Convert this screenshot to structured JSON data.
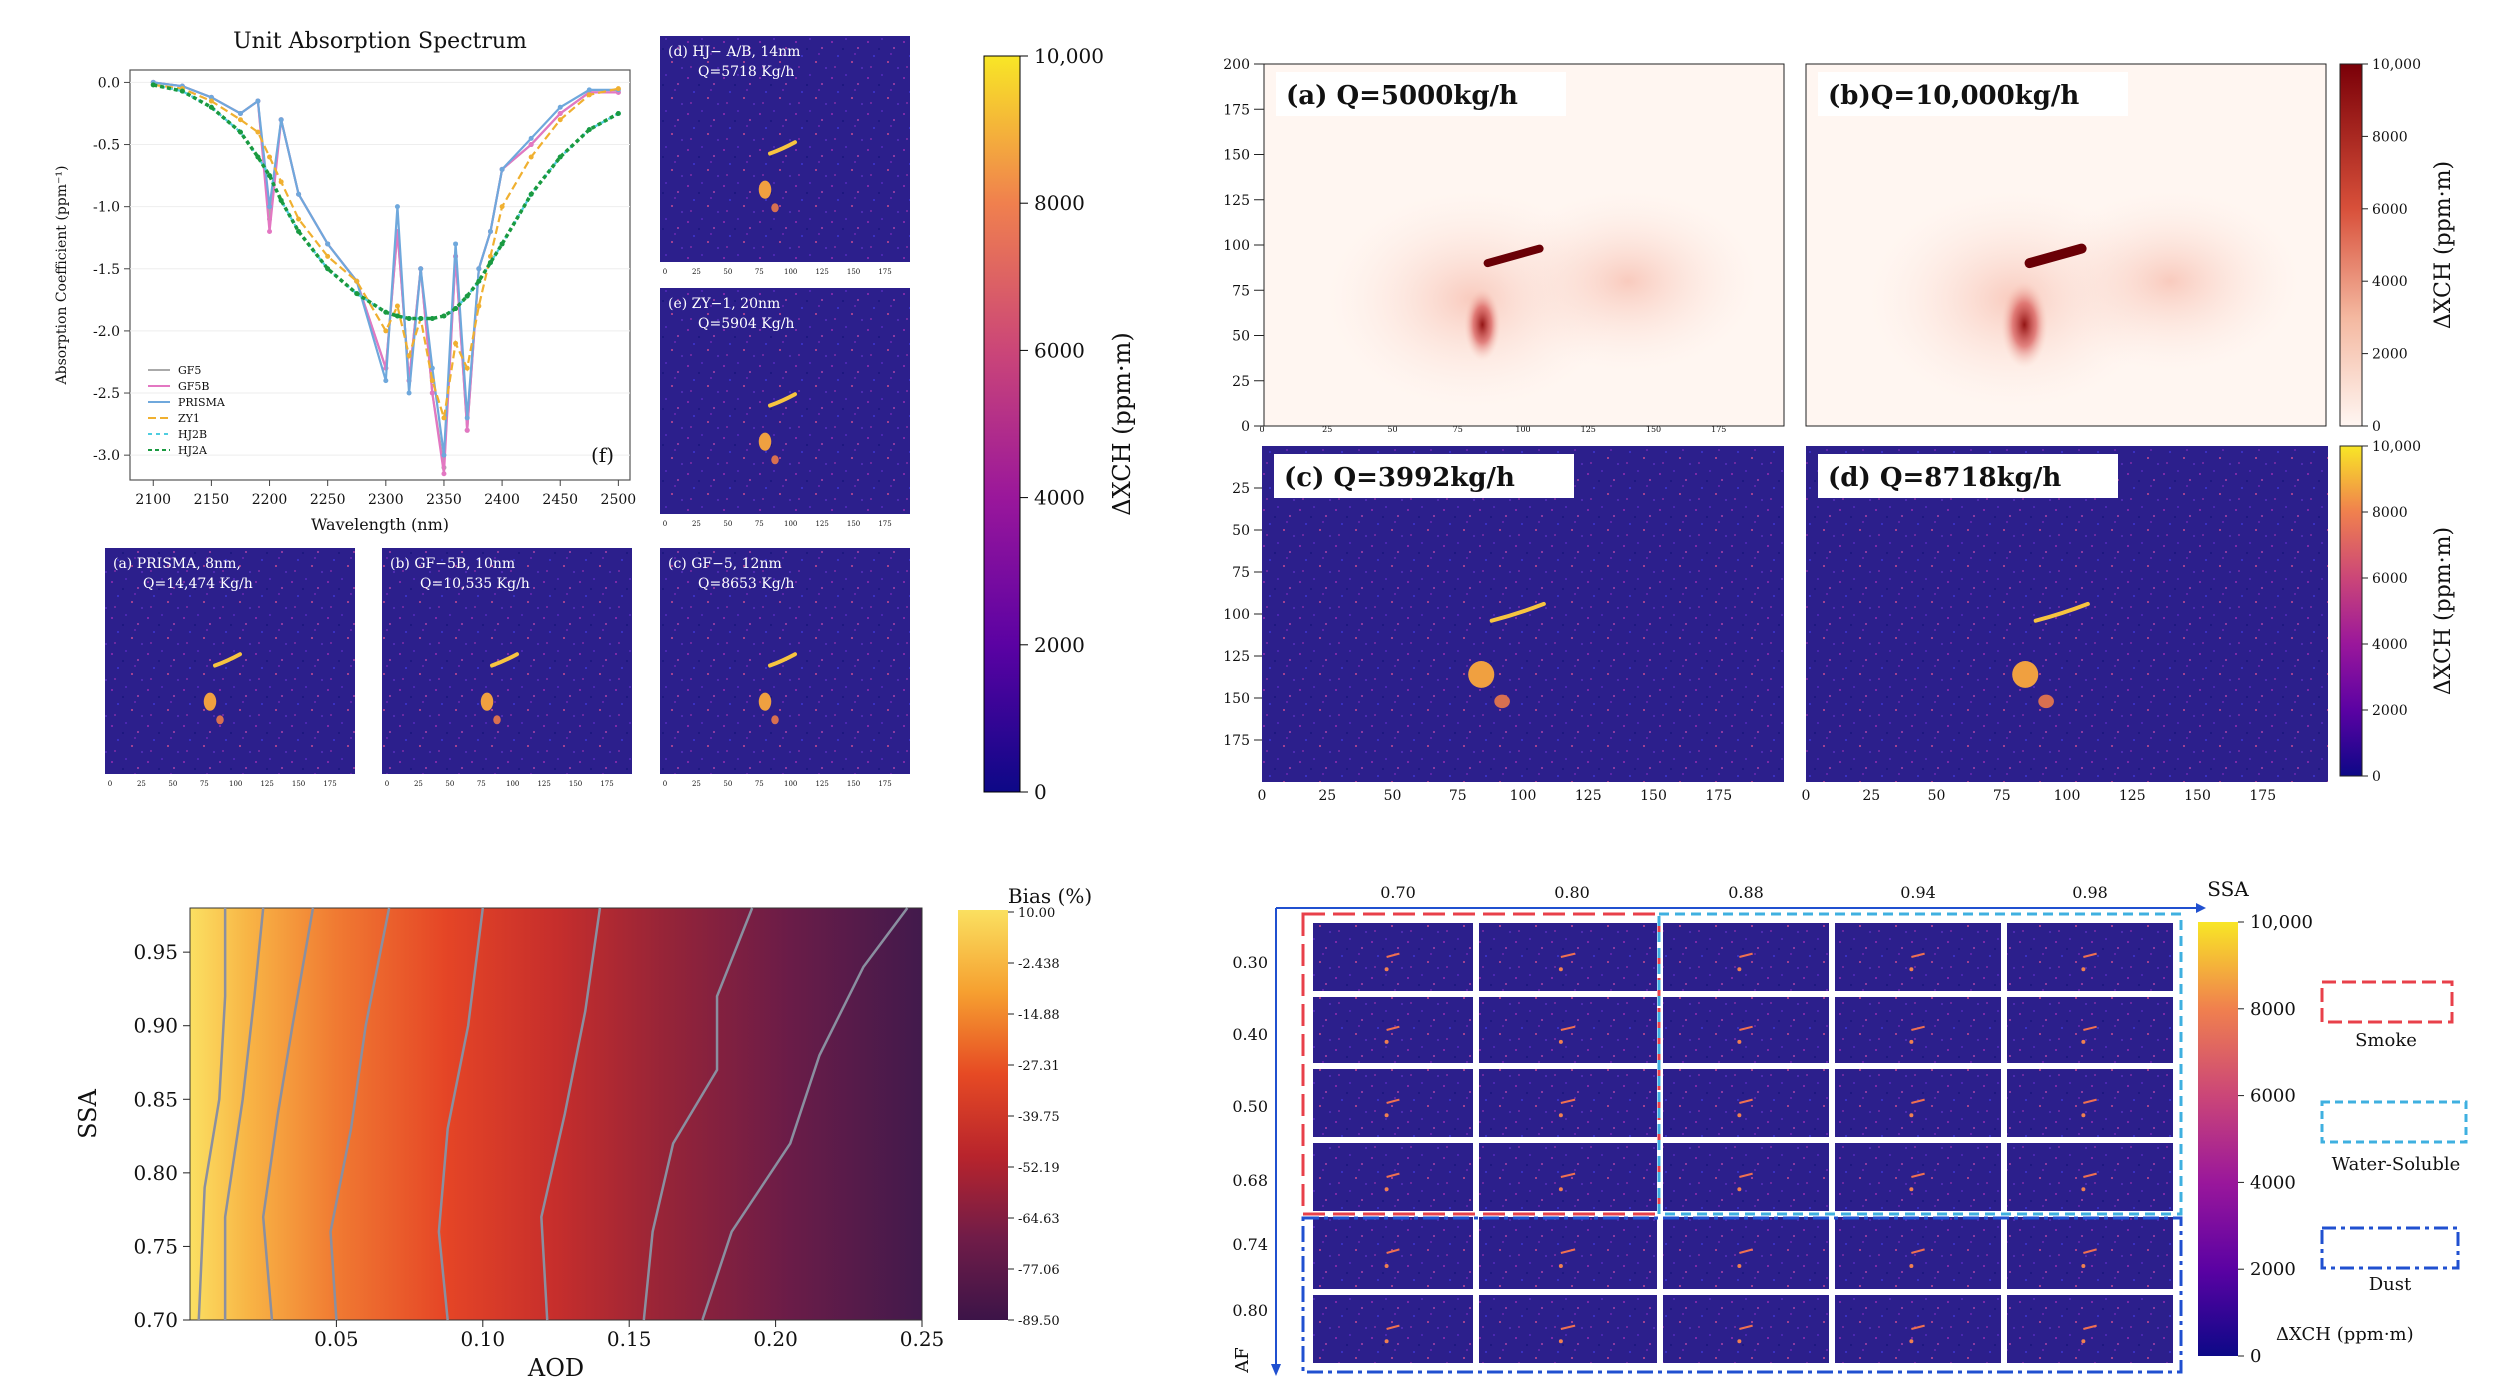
{
  "panel_top_left": {
    "spectrum": {
      "title": "Unit Absorption Spectrum",
      "ylabel": "Absorption Coefficient (ppm⁻¹)",
      "xlabel": "Wavelength (nm)",
      "tag": "(f)",
      "xticks": [
        "2100",
        "2150",
        "2200",
        "2250",
        "2300",
        "2350",
        "2400",
        "2450",
        "2500"
      ],
      "yticks": [
        "0.0",
        "-0.5",
        "-1.0",
        "-1.5",
        "-2.0",
        "-2.5",
        "-3.0"
      ]
    },
    "thumbs": [
      {
        "l1": "(d) HJ− A/B, 14nm",
        "l2": "Q=5718 Kg/h"
      },
      {
        "l1": "(e) ZY−1, 20nm",
        "l2": "Q=5904 Kg/h"
      },
      {
        "l1": "(a)  PRISMA, 8nm,",
        "l2": "Q=14,474 Kg/h"
      },
      {
        "l1": "(b) GF−5B, 10nm",
        "l2": "Q=10,535 Kg/h"
      },
      {
        "l1": "(c) GF−5, 12nm",
        "l2": "Q=8653 Kg/h"
      }
    ],
    "thumb_ticks": [
      "0",
      "25",
      "50",
      "75",
      "100",
      "125",
      "150",
      "175"
    ],
    "colorbar": {
      "ticks": [
        "10,000",
        "8000",
        "6000",
        "4000",
        "2000",
        "0"
      ],
      "label": "ΔXCH (ppm·m)"
    }
  },
  "panel_top_right": {
    "titles": [
      "(a) Q=5000kg/h",
      "(b)Q=10,000kg/h",
      "(c) Q=3992kg/h",
      "(d) Q=8718kg/h"
    ],
    "yticks_top": [
      "200",
      "175",
      "150",
      "125",
      "100",
      "75",
      "50",
      "25",
      "0"
    ],
    "yticks_bottom": [
      "25",
      "50",
      "75",
      "100",
      "125",
      "150",
      "175"
    ],
    "xticks": [
      "0",
      "25",
      "50",
      "75",
      "100",
      "125",
      "150",
      "175"
    ],
    "cbar_ticks": [
      "10,000",
      "8000",
      "6000",
      "4000",
      "2000",
      "0"
    ],
    "cbar_label": "ΔXCH (ppm·m)"
  },
  "panel_bottom_left": {
    "xlabel": "AOD",
    "ylabel": "SSA",
    "xticks": [
      "0.05",
      "0.10",
      "0.15",
      "0.20",
      "0.25"
    ],
    "yticks": [
      "0.95",
      "0.90",
      "0.85",
      "0.80",
      "0.75",
      "0.70"
    ],
    "cbar_title": "Bias (%)",
    "cbar_ticks": [
      "10.00",
      "-2.438",
      "-14.88",
      "-27.31",
      "-39.75",
      "-52.19",
      "-64.63",
      "-77.06",
      "-89.50"
    ]
  },
  "panel_bottom_right": {
    "top_axis_label": "SSA",
    "top_ticks": [
      "0.70",
      "0.80",
      "0.88",
      "0.94",
      "0.98"
    ],
    "left_axis_label": "AF",
    "left_ticks": [
      "0.30",
      "0.40",
      "0.50",
      "0.68",
      "0.74",
      "0.80"
    ],
    "cbar_ticks": [
      "10,000",
      "8000",
      "6000",
      "4000",
      "2000",
      "0"
    ],
    "cbar_label": "ΔXCH (ppm·m)",
    "legend": [
      "Smoke",
      "Water-Soluble",
      "Dust"
    ]
  },
  "colors": {
    "gf5": "#aaaaaa",
    "gf5b": "#e377c2",
    "prisma": "#6fa8dc",
    "zy1": "#f0b030",
    "hj2b": "#4ecde0",
    "hj2a": "#1a9a40",
    "plume_bg": "#2c1f8c",
    "smoke": "#e8404a",
    "water": "#3fb0e0",
    "dust": "#2050d0"
  },
  "chart_data": [
    {
      "type": "line",
      "title": "Unit Absorption Spectrum",
      "xlabel": "Wavelength (nm)",
      "ylabel": "Absorption Coefficient (ppm⁻¹)",
      "xlim": [
        2080,
        2510
      ],
      "ylim": [
        -3.2,
        0.1
      ],
      "x": [
        2100,
        2125,
        2150,
        2175,
        2190,
        2200,
        2210,
        2225,
        2250,
        2275,
        2300,
        2310,
        2320,
        2330,
        2340,
        2350,
        2360,
        2370,
        2380,
        2390,
        2400,
        2425,
        2450,
        2475,
        2500
      ],
      "series": [
        {
          "name": "GF5",
          "values": [
            0.0,
            -0.03,
            -0.12,
            -0.25,
            -0.15,
            -1.1,
            -0.3,
            -0.9,
            -1.3,
            -1.6,
            -2.3,
            -1.2,
            -2.4,
            -1.5,
            -2.5,
            -3.1,
            -1.4,
            -2.8,
            -1.5,
            -1.2,
            -0.7,
            -0.5,
            -0.25,
            -0.08,
            -0.08
          ]
        },
        {
          "name": "GF5B",
          "values": [
            0.0,
            -0.03,
            -0.12,
            -0.25,
            -0.15,
            -1.2,
            -0.3,
            -0.9,
            -1.3,
            -1.6,
            -2.3,
            -1.2,
            -2.4,
            -1.5,
            -2.5,
            -3.15,
            -1.4,
            -2.8,
            -1.5,
            -1.2,
            -0.7,
            -0.5,
            -0.25,
            -0.08,
            -0.08
          ]
        },
        {
          "name": "PRISMA",
          "values": [
            0.0,
            -0.03,
            -0.12,
            -0.25,
            -0.15,
            -1.0,
            -0.3,
            -0.9,
            -1.3,
            -1.6,
            -2.4,
            -1.0,
            -2.5,
            -1.5,
            -2.3,
            -3.0,
            -1.3,
            -2.7,
            -1.5,
            -1.2,
            -0.7,
            -0.45,
            -0.2,
            -0.06,
            -0.06
          ]
        },
        {
          "name": "ZY1",
          "values": [
            -0.02,
            -0.05,
            -0.15,
            -0.3,
            -0.4,
            -0.6,
            -0.8,
            -1.1,
            -1.4,
            -1.6,
            -2.0,
            -1.8,
            -2.2,
            -1.9,
            -2.4,
            -2.7,
            -2.1,
            -2.3,
            -1.8,
            -1.4,
            -1.0,
            -0.6,
            -0.3,
            -0.1,
            -0.05
          ]
        },
        {
          "name": "HJ2B",
          "values": [
            -0.02,
            -0.07,
            -0.2,
            -0.4,
            -0.6,
            -0.75,
            -0.95,
            -1.2,
            -1.5,
            -1.7,
            -1.85,
            -1.88,
            -1.9,
            -1.9,
            -1.9,
            -1.88,
            -1.82,
            -1.72,
            -1.6,
            -1.45,
            -1.3,
            -0.9,
            -0.6,
            -0.38,
            -0.25
          ]
        },
        {
          "name": "HJ2A",
          "values": [
            -0.02,
            -0.07,
            -0.2,
            -0.4,
            -0.6,
            -0.75,
            -0.95,
            -1.2,
            -1.5,
            -1.7,
            -1.85,
            -1.88,
            -1.9,
            -1.9,
            -1.9,
            -1.88,
            -1.82,
            -1.72,
            -1.6,
            -1.45,
            -1.3,
            -0.9,
            -0.6,
            -0.38,
            -0.25
          ]
        }
      ]
    },
    {
      "type": "heatmap",
      "xlabel": "AOD",
      "ylabel": "SSA",
      "xlim": [
        0.0,
        0.25
      ],
      "ylim": [
        0.7,
        0.98
      ],
      "colorbar_title": "Bias (%)",
      "colorbar_range": [
        -89.5,
        10.0
      ],
      "contours": [
        {
          "points": [
            [
              0.012,
              0.98
            ],
            [
              0.012,
              0.92
            ],
            [
              0.01,
              0.85
            ],
            [
              0.005,
              0.79
            ],
            [
              0.003,
              0.7
            ]
          ]
        },
        {
          "points": [
            [
              0.025,
              0.98
            ],
            [
              0.022,
              0.92
            ],
            [
              0.018,
              0.85
            ],
            [
              0.012,
              0.77
            ],
            [
              0.012,
              0.7
            ]
          ]
        },
        {
          "points": [
            [
              0.042,
              0.98
            ],
            [
              0.035,
              0.9
            ],
            [
              0.03,
              0.84
            ],
            [
              0.025,
              0.77
            ],
            [
              0.028,
              0.7
            ]
          ]
        },
        {
          "points": [
            [
              0.068,
              0.98
            ],
            [
              0.06,
              0.9
            ],
            [
              0.055,
              0.83
            ],
            [
              0.048,
              0.76
            ],
            [
              0.05,
              0.7
            ]
          ]
        },
        {
          "points": [
            [
              0.1,
              0.98
            ],
            [
              0.095,
              0.9
            ],
            [
              0.088,
              0.83
            ],
            [
              0.085,
              0.76
            ],
            [
              0.088,
              0.7
            ]
          ]
        },
        {
          "points": [
            [
              0.14,
              0.98
            ],
            [
              0.135,
              0.91
            ],
            [
              0.128,
              0.84
            ],
            [
              0.12,
              0.77
            ],
            [
              0.122,
              0.7
            ]
          ]
        },
        {
          "points": [
            [
              0.192,
              0.98
            ],
            [
              0.18,
              0.92
            ],
            [
              0.18,
              0.87
            ],
            [
              0.165,
              0.82
            ],
            [
              0.158,
              0.76
            ],
            [
              0.155,
              0.7
            ]
          ]
        },
        {
          "points": [
            [
              0.245,
              0.98
            ],
            [
              0.23,
              0.94
            ],
            [
              0.215,
              0.88
            ],
            [
              0.205,
              0.82
            ],
            [
              0.185,
              0.76
            ],
            [
              0.175,
              0.7
            ]
          ]
        }
      ]
    }
  ]
}
